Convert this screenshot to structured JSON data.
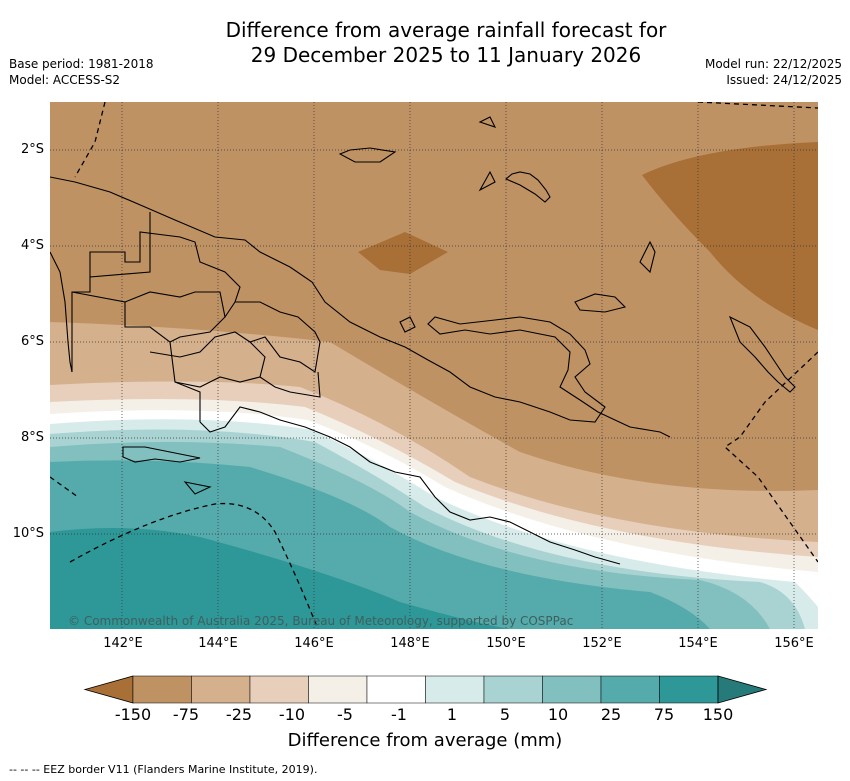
{
  "title": {
    "line1": "Difference from average rainfall forecast for",
    "line2": "29 December 2025 to 11 January 2026"
  },
  "meta": {
    "base_period": "Base period: 1981-2018",
    "model": "Model: ACCESS-S2",
    "model_run": "Model run: 22/12/2025",
    "issued": "Issued: 24/12/2025"
  },
  "axes": {
    "lat_labels": [
      "2°S",
      "4°S",
      "6°S",
      "8°S",
      "10°S"
    ],
    "lon_labels": [
      "142°E",
      "144°E",
      "146°E",
      "148°E",
      "150°E",
      "152°E",
      "154°E",
      "156°E"
    ]
  },
  "copyright": "© Commonwealth of Australia 2025, Bureau of Meteorology, supported by COSPPac",
  "colorbar": {
    "title": "Difference from average (mm)",
    "labels": [
      "-150",
      "-75",
      "-25",
      "-10",
      "-5",
      "-1",
      "1",
      "5",
      "10",
      "25",
      "75",
      "150"
    ],
    "colors": [
      "#a86f36",
      "#bf9264",
      "#d5b08c",
      "#e7cfbb",
      "#f4efe7",
      "#ffffff",
      "#d7ebea",
      "#a9d3d2",
      "#82bfbf",
      "#55abab",
      "#2e9797",
      "#277a7a"
    ]
  },
  "footnote": "--  --  -- EEZ border V11 (Flanders Marine Institute, 2019)."
}
